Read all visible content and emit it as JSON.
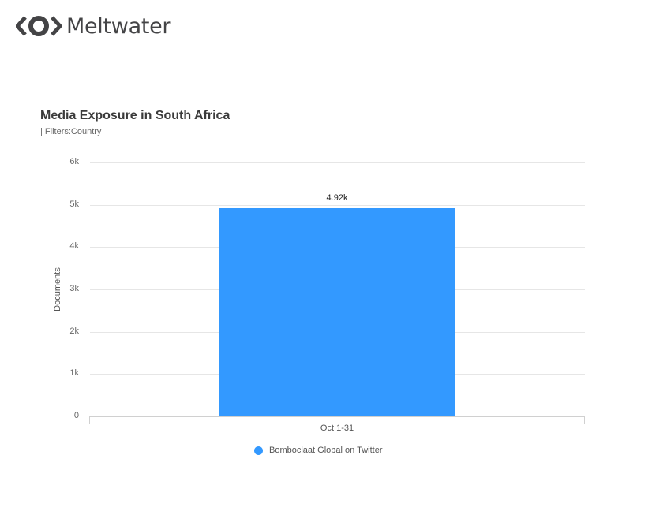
{
  "brand": {
    "name": "Meltwater",
    "logo_icon": "meltwater-eye-icon"
  },
  "report": {
    "title": "Media Exposure in South Africa",
    "subtitle": "| Filters:Country"
  },
  "colors": {
    "bar": "#3399ff",
    "text": "#3b3b3b",
    "grid": "#e6e6e6"
  },
  "chart_data": {
    "type": "bar",
    "title": "Media Exposure in South Africa",
    "subtitle": "| Filters:Country",
    "categories": [
      "Oct 1-31"
    ],
    "series": [
      {
        "name": "Bomboclaat Global on Twitter",
        "values": [
          4920
        ],
        "color": "#3399ff"
      }
    ],
    "data_labels": [
      "4.92k"
    ],
    "xlabel": "",
    "ylabel": "Documents",
    "ylim": [
      0,
      6000
    ],
    "yticks": [
      0,
      1000,
      2000,
      3000,
      4000,
      5000,
      6000
    ],
    "ytick_labels": [
      "0",
      "1k",
      "2k",
      "3k",
      "4k",
      "5k",
      "6k"
    ],
    "grid": true,
    "legend_position": "bottom"
  }
}
